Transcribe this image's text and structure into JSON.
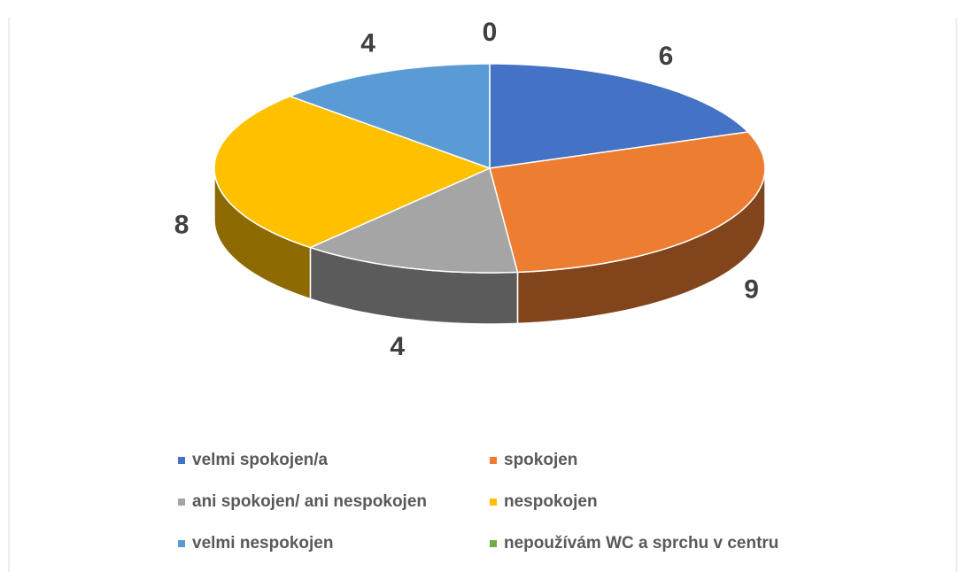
{
  "chart_data": {
    "type": "pie3d",
    "categories": [
      "velmi spokojen/a",
      "spokojen",
      "ani spokojen/ ani nespokojen",
      "nespokojen",
      "velmi nespokojen",
      "nepoužívám WC a sprchu v centru"
    ],
    "values": [
      6,
      9,
      4,
      8,
      4,
      0
    ],
    "colors": [
      "#4472c4",
      "#ed7d31",
      "#a5a5a5",
      "#ffc000",
      "#5b9bd5",
      "#70ad47"
    ],
    "legend": "bottom"
  }
}
